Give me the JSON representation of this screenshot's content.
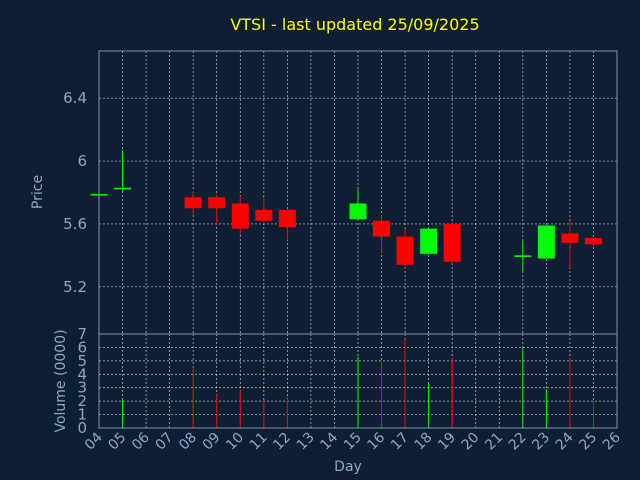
{
  "chart_data": {
    "type": "candlestick",
    "title": "VTSI - last updated 25/09/2025",
    "xlabel": "Day",
    "ylabel": "Price",
    "volume_ylabel": "Volume (0000)",
    "x_ticks": [
      "04",
      "05",
      "06",
      "07",
      "08",
      "09",
      "10",
      "11",
      "12",
      "13",
      "14",
      "15",
      "16",
      "17",
      "18",
      "19",
      "20",
      "21",
      "22",
      "23",
      "24",
      "25",
      "26"
    ],
    "y_ticks": [
      "5.2",
      "5.6",
      "6",
      "6.4"
    ],
    "volume_ticks": [
      "0",
      "1",
      "2",
      "3",
      "4",
      "5",
      "6",
      "7"
    ],
    "xlim": [
      4,
      26
    ],
    "ylim": [
      4.9,
      6.7
    ],
    "volume_ylim": [
      0,
      7
    ],
    "grid": true,
    "colors": {
      "up": "#00ff00",
      "down": "#ff0000",
      "title": "#ffff00",
      "axis_text": "#8aa8c8",
      "background": "#0f1f33"
    },
    "candles": [
      {
        "day": 4,
        "open": 5.79,
        "high": 5.79,
        "low": 5.79,
        "close": 5.79
      },
      {
        "day": 5,
        "open": 5.82,
        "high": 6.07,
        "low": 5.81,
        "close": 5.83
      },
      {
        "day": 8,
        "open": 5.77,
        "high": 5.81,
        "low": 5.66,
        "close": 5.7
      },
      {
        "day": 9,
        "open": 5.77,
        "high": 5.79,
        "low": 5.59,
        "close": 5.7
      },
      {
        "day": 10,
        "open": 5.73,
        "high": 5.78,
        "low": 5.53,
        "close": 5.57
      },
      {
        "day": 11,
        "open": 5.69,
        "high": 5.77,
        "low": 5.6,
        "close": 5.62
      },
      {
        "day": 12,
        "open": 5.69,
        "high": 5.69,
        "low": 5.5,
        "close": 5.58
      },
      {
        "day": 15,
        "open": 5.63,
        "high": 5.82,
        "low": 5.62,
        "close": 5.73
      },
      {
        "day": 16,
        "open": 5.62,
        "high": 5.66,
        "low": 5.41,
        "close": 5.52
      },
      {
        "day": 17,
        "open": 5.52,
        "high": 5.57,
        "low": 5.32,
        "close": 5.34
      },
      {
        "day": 18,
        "open": 5.41,
        "high": 5.57,
        "low": 5.41,
        "close": 5.57
      },
      {
        "day": 19,
        "open": 5.6,
        "high": 5.61,
        "low": 5.35,
        "close": 5.36
      },
      {
        "day": 22,
        "open": 5.39,
        "high": 5.49,
        "low": 5.3,
        "close": 5.4
      },
      {
        "day": 23,
        "open": 5.38,
        "high": 5.59,
        "low": 5.38,
        "close": 5.59
      },
      {
        "day": 24,
        "open": 5.54,
        "high": 5.62,
        "low": 5.32,
        "close": 5.48
      },
      {
        "day": 25,
        "open": 5.51,
        "high": 5.51,
        "low": 5.46,
        "close": 5.47
      }
    ],
    "volume": [
      {
        "day": 5,
        "value": 2.1,
        "dir": "up"
      },
      {
        "day": 8,
        "value": 4.5,
        "dir": "down"
      },
      {
        "day": 9,
        "value": 2.5,
        "dir": "down"
      },
      {
        "day": 10,
        "value": 2.8,
        "dir": "down"
      },
      {
        "day": 11,
        "value": 2.0,
        "dir": "down"
      },
      {
        "day": 12,
        "value": 2.3,
        "dir": "down"
      },
      {
        "day": 15,
        "value": 5.3,
        "dir": "up"
      },
      {
        "day": 16,
        "value": 4.9,
        "dir": "down"
      },
      {
        "day": 17,
        "value": 6.6,
        "dir": "down"
      },
      {
        "day": 18,
        "value": 3.3,
        "dir": "up"
      },
      {
        "day": 19,
        "value": 5.2,
        "dir": "down"
      },
      {
        "day": 22,
        "value": 6.0,
        "dir": "up"
      },
      {
        "day": 23,
        "value": 2.9,
        "dir": "up"
      },
      {
        "day": 24,
        "value": 5.2,
        "dir": "down"
      },
      {
        "day": 25,
        "value": 2.0,
        "dir": "down"
      }
    ]
  }
}
